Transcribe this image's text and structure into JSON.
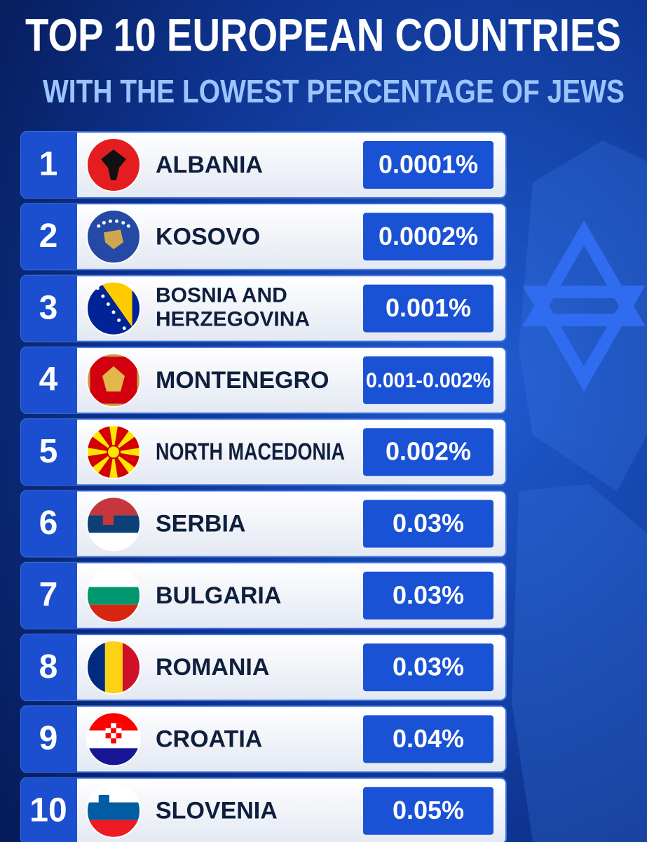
{
  "header": {
    "title": "TOP 10 EUROPEAN COUNTRIES",
    "subtitle": "WITH THE LOWEST PERCENTAGE OF JEWS"
  },
  "rows": [
    {
      "rank": "1",
      "name": "ALBANIA",
      "value": "0.0001%"
    },
    {
      "rank": "2",
      "name": "KOSOVO",
      "value": "0.0002%"
    },
    {
      "rank": "3",
      "name": [
        "BOSNIA AND",
        "HERZEGOVINA"
      ],
      "value": "0.001%"
    },
    {
      "rank": "4",
      "name": "MONTENEGRO",
      "value": "0.001-0.002%"
    },
    {
      "rank": "5",
      "name": "NORTH MACEDONIA",
      "value": "0.002%"
    },
    {
      "rank": "6",
      "name": "SERBIA",
      "value": "0.03%"
    },
    {
      "rank": "7",
      "name": "BULGARIA",
      "value": "0.03%"
    },
    {
      "rank": "8",
      "name": "ROMANIA",
      "value": "0.03%"
    },
    {
      "rank": "9",
      "name": "CROATIA",
      "value": "0.04%"
    },
    {
      "rank": "10",
      "name": "SLOVENIA",
      "value": "0.05%"
    }
  ]
}
